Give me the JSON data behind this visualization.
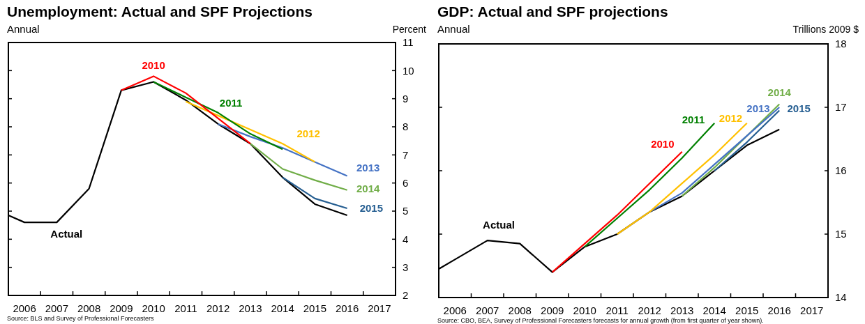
{
  "chart_data": [
    {
      "type": "line",
      "title": "Unemployment: Actual and SPF Projections",
      "subtitle": "Annual",
      "ylabel": "Percent",
      "xlim": [
        2005.5,
        2017.5
      ],
      "xticks": [
        {
          "value": 2006,
          "label": "2006"
        },
        {
          "value": 2007,
          "label": "2007"
        },
        {
          "value": 2008,
          "label": "2008"
        },
        {
          "value": 2009,
          "label": "2009"
        },
        {
          "value": 2010,
          "label": "2010"
        },
        {
          "value": 2011,
          "label": "2011"
        },
        {
          "value": 2012,
          "label": "2012"
        },
        {
          "value": 2013,
          "label": "2013"
        },
        {
          "value": 2014,
          "label": "2014"
        },
        {
          "value": 2015,
          "label": "2015"
        },
        {
          "value": 2016,
          "label": "2016"
        },
        {
          "value": 2017,
          "label": "2017"
        },
        {
          "value": 2006.5,
          "label": null
        },
        {
          "value": 2007.5,
          "label": null
        },
        {
          "value": 2008.5,
          "label": null
        },
        {
          "value": 2009.5,
          "label": null
        },
        {
          "value": 2010.5,
          "label": null
        },
        {
          "value": 2011.5,
          "label": null
        },
        {
          "value": 2012.5,
          "label": null
        },
        {
          "value": 2013.5,
          "label": null
        },
        {
          "value": 2014.5,
          "label": null
        },
        {
          "value": 2015.5,
          "label": null
        },
        {
          "value": 2016.5,
          "label": null
        }
      ],
      "ylim": [
        2,
        11
      ],
      "yticks": [
        2,
        3,
        4,
        5,
        6,
        7,
        8,
        9,
        10,
        11
      ],
      "series": [
        {
          "name": "2010",
          "color": "#ff0000",
          "x": [
            2009,
            2010,
            2011,
            2012,
            2013
          ],
          "values": [
            9.3,
            9.8,
            9.2,
            8.3,
            7.4
          ]
        },
        {
          "name": "2011",
          "color": "#008000",
          "x": [
            2010,
            2011,
            2012,
            2013,
            2014
          ],
          "values": [
            9.6,
            9.05,
            8.5,
            7.75,
            7.2
          ]
        },
        {
          "name": "2012",
          "color": "#ffc000",
          "x": [
            2011,
            2012,
            2013,
            2014,
            2015
          ],
          "values": [
            8.9,
            8.4,
            7.9,
            7.4,
            6.75
          ]
        },
        {
          "name": "2013",
          "color": "#4472c4",
          "x": [
            2012,
            2013,
            2014,
            2015,
            2016
          ],
          "values": [
            8.1,
            7.65,
            7.25,
            6.75,
            6.25
          ]
        },
        {
          "name": "2014",
          "color": "#70ad47",
          "x": [
            2013,
            2014,
            2015,
            2016
          ],
          "values": [
            7.4,
            6.5,
            6.1,
            5.75
          ]
        },
        {
          "name": "2015",
          "color": "#255e91",
          "x": [
            2014,
            2015,
            2016
          ],
          "values": [
            6.2,
            5.45,
            5.1
          ]
        },
        {
          "name": "Actual",
          "color": "#000000",
          "x": [
            2005.5,
            2006,
            2007,
            2008,
            2009,
            2010,
            2011,
            2012,
            2013,
            2014,
            2015,
            2016
          ],
          "values": [
            4.85,
            4.6,
            4.6,
            5.8,
            9.3,
            9.6,
            8.95,
            8.1,
            7.4,
            6.2,
            5.25,
            4.85
          ]
        }
      ],
      "annotations": [
        "Source: BLS and Survey of Professional Forecasters"
      ]
    },
    {
      "type": "line",
      "title": "GDP: Actual and SPF projections",
      "subtitle": "Annual",
      "ylabel": "Trillions 2009 $",
      "xlim": [
        2005.5,
        2017.5
      ],
      "xticks": [
        {
          "value": 2006,
          "label": "2006"
        },
        {
          "value": 2007,
          "label": "2007"
        },
        {
          "value": 2008,
          "label": "2008"
        },
        {
          "value": 2009,
          "label": "2009"
        },
        {
          "value": 2010,
          "label": "2010"
        },
        {
          "value": 2011,
          "label": "2011"
        },
        {
          "value": 2012,
          "label": "2012"
        },
        {
          "value": 2013,
          "label": "2013"
        },
        {
          "value": 2014,
          "label": "2014"
        },
        {
          "value": 2015,
          "label": "2015"
        },
        {
          "value": 2016,
          "label": "2016"
        },
        {
          "value": 2017,
          "label": "2017"
        },
        {
          "value": 2006.5,
          "label": null
        },
        {
          "value": 2007.5,
          "label": null
        },
        {
          "value": 2008.5,
          "label": null
        },
        {
          "value": 2009.5,
          "label": null
        },
        {
          "value": 2010.5,
          "label": null
        },
        {
          "value": 2011.5,
          "label": null
        },
        {
          "value": 2012.5,
          "label": null
        },
        {
          "value": 2013.5,
          "label": null
        },
        {
          "value": 2014.5,
          "label": null
        },
        {
          "value": 2015.5,
          "label": null
        },
        {
          "value": 2016.5,
          "label": null
        }
      ],
      "ylim": [
        14,
        18
      ],
      "yticks": [
        14,
        15,
        16,
        17,
        18
      ],
      "series": [
        {
          "name": "2010",
          "color": "#ff0000",
          "x": [
            2009,
            2010,
            2011,
            2012,
            2013
          ],
          "values": [
            14.4,
            14.85,
            15.3,
            15.8,
            16.3
          ]
        },
        {
          "name": "2011",
          "color": "#008000",
          "x": [
            2010,
            2011,
            2012,
            2013,
            2014
          ],
          "values": [
            14.8,
            15.25,
            15.7,
            16.2,
            16.75
          ]
        },
        {
          "name": "2012",
          "color": "#ffc000",
          "x": [
            2011,
            2012,
            2013,
            2014,
            2015
          ],
          "values": [
            15.0,
            15.35,
            15.8,
            16.25,
            16.75
          ]
        },
        {
          "name": "2013",
          "color": "#4472c4",
          "x": [
            2012,
            2013,
            2014,
            2015,
            2016
          ],
          "values": [
            15.35,
            15.65,
            16.1,
            16.55,
            17.0
          ]
        },
        {
          "name": "2014",
          "color": "#70ad47",
          "x": [
            2013,
            2014,
            2015,
            2016
          ],
          "values": [
            15.6,
            16.05,
            16.55,
            17.05
          ]
        },
        {
          "name": "2015",
          "color": "#255e91",
          "x": [
            2014,
            2015,
            2016
          ],
          "values": [
            16.0,
            16.45,
            16.95
          ]
        },
        {
          "name": "Actual",
          "color": "#000000",
          "x": [
            2005.5,
            2006,
            2007,
            2008,
            2009,
            2010,
            2011,
            2012,
            2013,
            2014,
            2015,
            2016
          ],
          "values": [
            14.45,
            14.6,
            14.9,
            14.85,
            14.4,
            14.8,
            15.0,
            15.35,
            15.6,
            16.0,
            16.4,
            16.65
          ]
        }
      ],
      "annotations": [
        "Source: CBO, BEA, Survey of Professional Forecasters forecasts for annual growth (from first quarter of year shown)."
      ]
    }
  ]
}
